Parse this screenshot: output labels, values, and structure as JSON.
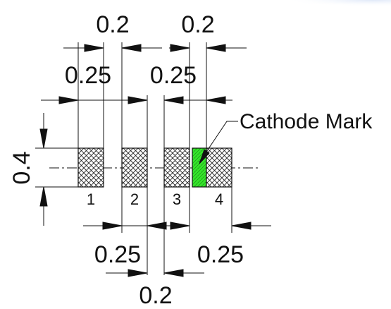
{
  "drawing": {
    "top_pitch_labels": [
      "0.2",
      "0.2"
    ],
    "top_pad_width_labels": [
      "0.25",
      "0.25"
    ],
    "height_label": "0.4",
    "bottom_pad_width_labels": [
      "0.25",
      "0.25"
    ],
    "bottom_gap_label": "0.2",
    "pin_labels": [
      "1",
      "2",
      "3",
      "4"
    ],
    "cathode_mark_label": "Cathode Mark"
  },
  "colors": {
    "line": "#111111",
    "cathode_mark": "#35e52a",
    "watermark": "#dfe8f8"
  },
  "icons": {
    "arrowhead": "arrow-icon",
    "crosshatch": "crosshatch-icon"
  }
}
